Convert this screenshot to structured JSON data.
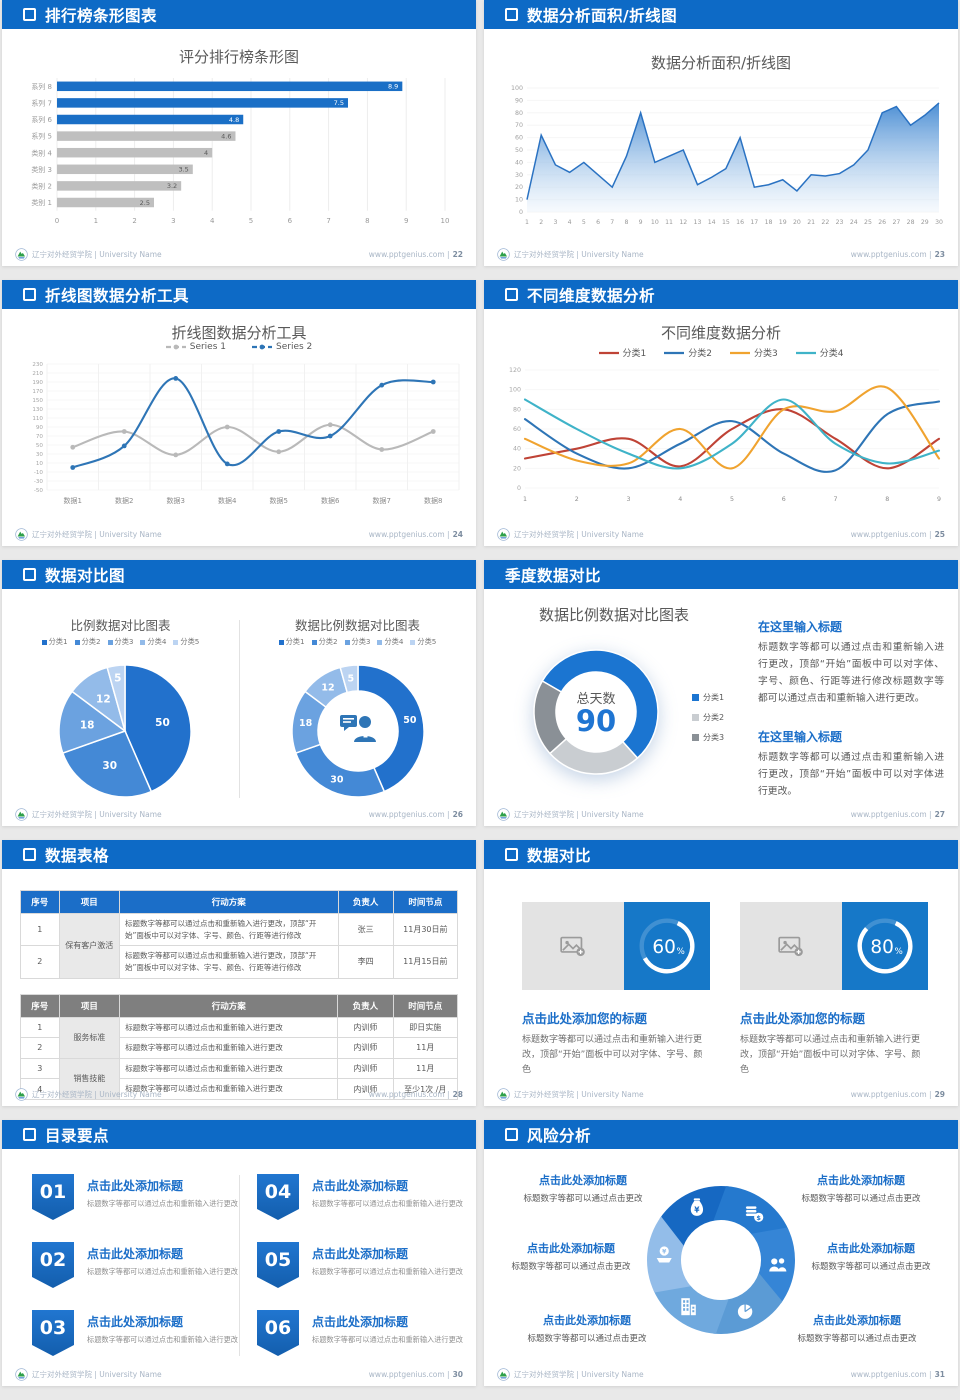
{
  "footer": {
    "school": "辽宁对外经贸学院 | University Name",
    "site": "www.pptgenius.com"
  },
  "accent": {
    "header_blue": "#0d6ac6",
    "title_blue": "#1b6ec8",
    "chart_blue": "#2e75b6",
    "gray": "#bfbfbf"
  },
  "slides": [
    {
      "header": "排行榜条形图表",
      "header_icon": true,
      "page": "22",
      "chart_data": {
        "type": "bar",
        "orientation": "horizontal",
        "title": "评分排行榜条形图",
        "categories": [
          "系列 8",
          "系列 7",
          "系列 6",
          "系列 5",
          "类别 4",
          "类别 3",
          "类别 2",
          "类别 1"
        ],
        "values": [
          8.9,
          7.5,
          4.8,
          4.6,
          4,
          3.5,
          3.2,
          2.5
        ],
        "bar_colors": [
          "#1a6fc6",
          "#1a6fc6",
          "#1a6fc6",
          "#bfbfbf",
          "#bfbfbf",
          "#bfbfbf",
          "#bfbfbf",
          "#bfbfbf"
        ],
        "xlim": [
          0,
          10
        ],
        "xticks": [
          0,
          1,
          2,
          3,
          4,
          5,
          6,
          7,
          8,
          9,
          10
        ],
        "grid": true
      }
    },
    {
      "header": "数据分析面积/折线图",
      "header_icon": true,
      "page": "23",
      "chart_data": {
        "type": "area",
        "title": "数据分析面积/折线图",
        "x": [
          1,
          2,
          3,
          4,
          5,
          6,
          7,
          8,
          9,
          10,
          11,
          12,
          13,
          14,
          15,
          16,
          17,
          18,
          19,
          20,
          21,
          22,
          23,
          24,
          25,
          26,
          27,
          28,
          29,
          30
        ],
        "values": [
          10,
          62,
          38,
          32,
          40,
          30,
          20,
          45,
          80,
          40,
          45,
          50,
          22,
          28,
          35,
          60,
          20,
          22,
          26,
          17,
          30,
          29,
          31,
          38,
          50,
          80,
          85,
          70,
          78,
          88
        ],
        "ylim": [
          0,
          100
        ],
        "ytick_step": 10,
        "line_color": "#2a72c2",
        "fill_from": "#4389d2",
        "fill_to": "#eef5fc"
      }
    },
    {
      "header": "折线图数据分析工具",
      "header_icon": true,
      "page": "24",
      "chart_data": {
        "type": "line",
        "title": "折线图数据分析工具",
        "categories": [
          "数据1",
          "数据2",
          "数据3",
          "数据4",
          "数据5",
          "数据6",
          "数据7",
          "数据8"
        ],
        "series": [
          {
            "name": "Series 1",
            "color": "#b9b9b9",
            "values": [
              45,
              80,
              28,
              90,
              35,
              95,
              40,
              80
            ]
          },
          {
            "name": "Series 2",
            "color": "#2e75b6",
            "values": [
              0,
              48,
              198,
              8,
              80,
              70,
              183,
              190
            ]
          }
        ],
        "ylim": [
          -50,
          230
        ],
        "ytick_step": 20,
        "markers": true,
        "legend_position": "top"
      }
    },
    {
      "header": "不同维度数据分析",
      "header_icon": true,
      "page": "25",
      "chart_data": {
        "type": "line",
        "title": "不同维度数据分析",
        "x": [
          1,
          2,
          3,
          4,
          5,
          6,
          7,
          8,
          9
        ],
        "series": [
          {
            "name": "分类1",
            "color": "#bf4336",
            "values": [
              30,
              40,
              50,
              22,
              60,
              80,
              50,
              20,
              50
            ]
          },
          {
            "name": "分类2",
            "color": "#2e75b6",
            "values": [
              70,
              35,
              20,
              45,
              68,
              35,
              18,
              75,
              88
            ]
          },
          {
            "name": "分类3",
            "color": "#f0a32f",
            "values": [
              50,
              28,
              25,
              60,
              20,
              80,
              78,
              102,
              30
            ]
          },
          {
            "name": "分类4",
            "color": "#3fb3c8",
            "values": [
              90,
              60,
              35,
              20,
              45,
              90,
              45,
              25,
              38
            ]
          }
        ],
        "ylim": [
          0,
          120
        ],
        "ytick_step": 20,
        "markers": false,
        "legend_position": "top"
      }
    },
    {
      "header": "数据对比图",
      "header_icon": true,
      "page": "26",
      "charts": [
        {
          "type": "pie",
          "title": "比例数据对比图表",
          "legend": [
            "分类1",
            "分类2",
            "分类3",
            "分类4",
            "分类5"
          ],
          "values": [
            50,
            30,
            18,
            12,
            5
          ],
          "colors": [
            "#2271cc",
            "#4489d6",
            "#6ba2e0",
            "#93bbe9",
            "#bcd4f2"
          ]
        },
        {
          "type": "donut",
          "title": "数据比例数据对比图表",
          "legend": [
            "分类1",
            "分类2",
            "分类3",
            "分类4",
            "分类5"
          ],
          "values": [
            50,
            30,
            18,
            12,
            5
          ],
          "colors": [
            "#2271cc",
            "#4489d6",
            "#6ba2e0",
            "#93bbe9",
            "#bcd4f2"
          ],
          "center_icon": "person-speech-icon"
        }
      ]
    },
    {
      "header": "季度数据对比",
      "header_icon": false,
      "page": "27",
      "chart_data": {
        "type": "donut",
        "title": "数据比例数据对比图表",
        "center_label": "总天数",
        "center_value": "90",
        "legend": [
          "分类1",
          "分类2",
          "分类3"
        ],
        "values": [
          55,
          25,
          20
        ],
        "colors": [
          "#1b75d1",
          "#c9cdd1",
          "#8a9096"
        ],
        "start_angle": -60
      },
      "blocks": [
        {
          "heading": "在这里输入标题",
          "body": "标题数字等都可以通过点击和重新输入进行更改，顶部“开始”面板中可以对字体、字号、颜色、行距等进行修改标题数字等都可以通过点击和重新输入进行更改。"
        },
        {
          "heading": "在这里输入标题",
          "body": "标题数字等都可以通过点击和重新输入进行更改，顶部“开始”面板中可以对字体进行更改。"
        }
      ]
    },
    {
      "header": "数据表格",
      "header_icon": true,
      "page": "28",
      "tables": [
        {
          "header_bg": "#1b6ec8",
          "columns": [
            "序号",
            "项目",
            "行动方案",
            "负责人",
            "时间节点"
          ],
          "rows": [
            {
              "no": "1",
              "project": "保有客户激活",
              "span": 2,
              "plan": "标题数字等都可以通过点击和重新输入进行更改，顶部“开始”面板中可以对字体、字号、颜色、行距等进行修改",
              "owner": "张三",
              "time": "11月30日前"
            },
            {
              "no": "2",
              "plan": "标题数字等都可以通过点击和重新输入进行更改，顶部“开始”面板中可以对字体、字号、颜色、行距等进行修改",
              "owner": "李四",
              "time": "11月15日前"
            }
          ]
        },
        {
          "header_bg": "#7f7f7f",
          "columns": [
            "序号",
            "项目",
            "行动方案",
            "负责人",
            "时间节点"
          ],
          "rows": [
            {
              "no": "1",
              "project": "服务标准",
              "span": 2,
              "plan": "标题数字等都可以通过点击和重新输入进行更改",
              "owner": "内训师",
              "time": "即日实施"
            },
            {
              "no": "2",
              "plan": "标题数字等都可以通过点击和重新输入进行更改",
              "owner": "内训师",
              "time": "11月"
            },
            {
              "no": "3",
              "project": "销售技能",
              "span": 2,
              "plan": "标题数字等都可以通过点击和重新输入进行更改",
              "owner": "内训师",
              "time": "11月"
            },
            {
              "no": "4",
              "plan": "标题数字等都可以通过点击和重新输入进行更改",
              "owner": "内训师",
              "time": "至少1次 /月"
            }
          ]
        }
      ]
    },
    {
      "header": "数据对比",
      "header_icon": true,
      "page": "29",
      "cards": [
        {
          "percent": 60,
          "percent_label": "60",
          "unit": "%",
          "heading": "点击此处添加您的标题",
          "body": "标题数字等都可以通过点击和重新输入进行更改，顶部“开始”面板中可以对字体、字号、颜色"
        },
        {
          "percent": 80,
          "percent_label": "80",
          "unit": "%",
          "heading": "点击此处添加您的标题",
          "body": "标题数字等都可以通过点击和重新输入进行更改，顶部“开始”面板中可以对字体、字号、颜色"
        }
      ]
    },
    {
      "header": "目录要点",
      "header_icon": true,
      "page": "30",
      "items": [
        {
          "num": "01",
          "heading": "点击此处添加标题",
          "body": "标题数字等都可以通过点击和重新输入进行更改"
        },
        {
          "num": "02",
          "heading": "点击此处添加标题",
          "body": "标题数字等都可以通过点击和重新输入进行更改"
        },
        {
          "num": "03",
          "heading": "点击此处添加标题",
          "body": "标题数字等都可以通过点击和重新输入进行更改"
        },
        {
          "num": "04",
          "heading": "点击此处添加标题",
          "body": "标题数字等都可以通过点击和重新输入进行更改"
        },
        {
          "num": "05",
          "heading": "点击此处添加标题",
          "body": "标题数字等都可以通过点击和重新输入进行更改"
        },
        {
          "num": "06",
          "heading": "点击此处添加标题",
          "body": "标题数字等都可以通过点击和重新输入进行更改"
        }
      ]
    },
    {
      "header": "风险分析",
      "header_icon": true,
      "page": "31",
      "wheel_colors": [
        "#1668c2",
        "#2579ce",
        "#3585d6",
        "#5b9bd5",
        "#6fa9de",
        "#93bde9"
      ],
      "items": [
        {
          "icon": "money-bag-icon",
          "heading": "点击此处添加标题",
          "body": "标题数字等都可以通过点击更改"
        },
        {
          "icon": "coins-icon",
          "heading": "点击此处添加标题",
          "body": "标题数字等都可以通过点击更改"
        },
        {
          "icon": "people-icon",
          "heading": "点击此处添加标题",
          "body": "标题数字等都可以通过点击更改"
        },
        {
          "icon": "pie-chart-icon",
          "heading": "点击此处添加标题",
          "body": "标题数字等都可以通过点击更改"
        },
        {
          "icon": "building-icon",
          "heading": "点击此处添加标题",
          "body": "标题数字等都可以通过点击更改"
        },
        {
          "icon": "hand-coin-icon",
          "heading": "点击此处添加标题",
          "body": "标题数字等都可以通过点击更改"
        }
      ]
    }
  ]
}
